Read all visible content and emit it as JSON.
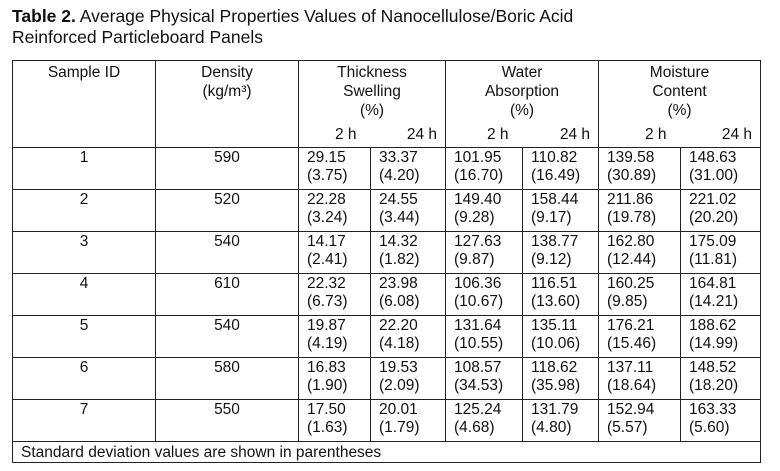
{
  "title": {
    "label": "Table 2.",
    "text": "Average Physical Properties Values of Nanocellulose/Boric Acid Reinforced Particleboard Panels"
  },
  "table": {
    "headers": {
      "sample_id": "Sample ID",
      "density": [
        "Density",
        "(kg/m³)"
      ],
      "groups": [
        [
          "Thickness",
          "Swelling",
          "(%)"
        ],
        [
          "Water",
          "Absorption",
          "(%)"
        ],
        [
          "Moisture",
          "Content",
          "(%)"
        ]
      ],
      "subheaders": [
        "2 h",
        "24 h"
      ]
    },
    "rows": [
      {
        "id": "1",
        "density": "590",
        "cells": [
          [
            "29.15",
            "(3.75)"
          ],
          [
            "33.37",
            "(4.20)"
          ],
          [
            "101.95",
            "(16.70)"
          ],
          [
            "110.82",
            "(16.49)"
          ],
          [
            "139.58",
            "(30.89)"
          ],
          [
            "148.63",
            "(31.00)"
          ]
        ]
      },
      {
        "id": "2",
        "density": "520",
        "cells": [
          [
            "22.28",
            "(3.24)"
          ],
          [
            "24.55",
            "(3.44)"
          ],
          [
            "149.40",
            "(9.28)"
          ],
          [
            "158.44",
            "(9.17)"
          ],
          [
            "211.86",
            "(19.78)"
          ],
          [
            "221.02",
            "(20.20)"
          ]
        ]
      },
      {
        "id": "3",
        "density": "540",
        "cells": [
          [
            "14.17",
            "(2.41)"
          ],
          [
            "14.32",
            "(1.82)"
          ],
          [
            "127.63",
            "(9.87)"
          ],
          [
            "138.77",
            "(9.12)"
          ],
          [
            "162.80",
            "(12.44)"
          ],
          [
            "175.09",
            "(11.81)"
          ]
        ]
      },
      {
        "id": "4",
        "density": "610",
        "cells": [
          [
            "22.32",
            "(6.73)"
          ],
          [
            "23.98",
            "(6.08)"
          ],
          [
            "106.36",
            "(10.67)"
          ],
          [
            "116.51",
            "(13.60)"
          ],
          [
            "160.25",
            "(9.85)"
          ],
          [
            "164.81",
            "(14.21)"
          ]
        ]
      },
      {
        "id": "5",
        "density": "540",
        "cells": [
          [
            "19.87",
            "(4.19)"
          ],
          [
            "22.20",
            "(4.18)"
          ],
          [
            "131.64",
            "(10.55)"
          ],
          [
            "135.11",
            "(10.06)"
          ],
          [
            "176.21",
            "(15.46)"
          ],
          [
            "188.62",
            "(14.99)"
          ]
        ]
      },
      {
        "id": "6",
        "density": "580",
        "cells": [
          [
            "16.83",
            "(1.90)"
          ],
          [
            "19.53",
            "(2.09)"
          ],
          [
            "108.57",
            "(34.53)"
          ],
          [
            "118.62",
            "(35.98)"
          ],
          [
            "137.11",
            "(18.64)"
          ],
          [
            "148.52",
            "(18.20)"
          ]
        ]
      },
      {
        "id": "7",
        "density": "550",
        "cells": [
          [
            "17.50",
            "(1.63)"
          ],
          [
            "20.01",
            "(1.79)"
          ],
          [
            "125.24",
            "(4.68)"
          ],
          [
            "131.79",
            "(4.80)"
          ],
          [
            "152.94",
            "(5.57)"
          ],
          [
            "163.33",
            "(5.60)"
          ]
        ]
      }
    ],
    "footnote": "Standard deviation values are shown in parentheses"
  }
}
